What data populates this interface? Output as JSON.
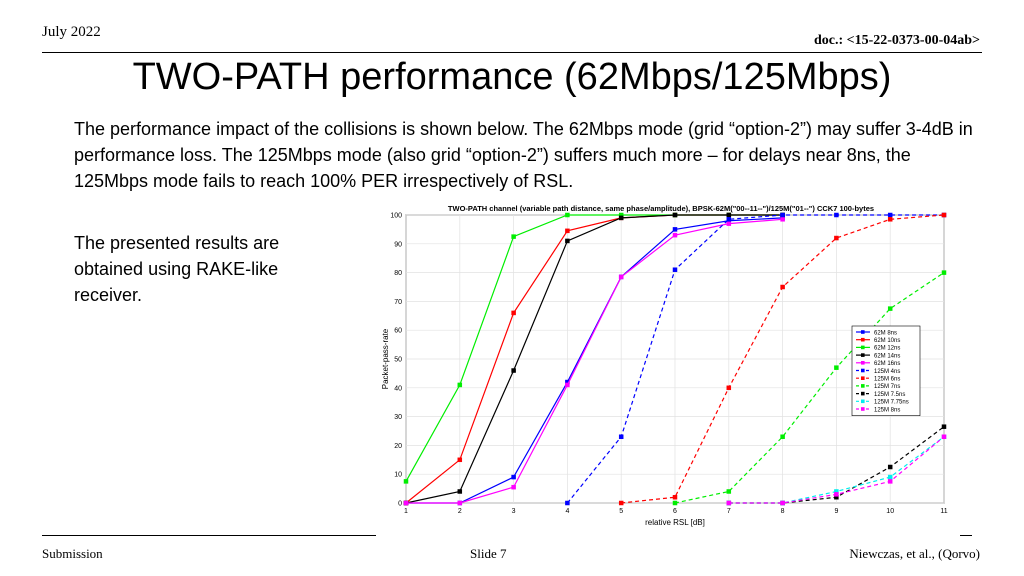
{
  "header": {
    "date": "July 2022",
    "doc": "doc.: <15-22-0373-00-04ab>"
  },
  "title": "TWO-PATH performance (62Mbps/125Mbps)",
  "paragraph": "The performance impact of the collisions is shown below. The 62Mbps mode (grid “option-2”) may suffer 3-4dB in performance loss. The 125Mbps mode (also grid “option-2”) suffers much more – for delays near 8ns, the 125Mbps mode fails to reach 100% PER irrespectively of RSL.",
  "side_note": "The presented results are obtained using RAKE-like receiver.",
  "footer": {
    "left": "Submission",
    "center": "Slide 7",
    "right": "Niewczas, et al., (Qorvo)"
  },
  "chart_data": {
    "type": "line",
    "title": "TWO-PATH channel (variable path distance, same phase/amplitude), BPSK-62M(\"00--11--\")/125M(\"01--\") CCK7 100-bytes",
    "xlabel": "relative RSL [dB]",
    "ylabel": "Packet-pass-rate",
    "xlim": [
      1,
      11
    ],
    "ylim": [
      0,
      100
    ],
    "x_ticks": [
      "1",
      "2",
      "3",
      "4",
      "5",
      "6",
      "7",
      "8",
      "9",
      "10",
      "11"
    ],
    "y_ticks": [
      "0",
      "10",
      "20",
      "30",
      "40",
      "50",
      "60",
      "70",
      "80",
      "90",
      "100"
    ],
    "grid": true,
    "legend_position": "center-right",
    "x": [
      1,
      2,
      3,
      4,
      5,
      6,
      7,
      8,
      9,
      10,
      11
    ],
    "series": [
      {
        "name": "62M 8ns",
        "color": "#0000ff",
        "dash": false,
        "values": [
          0,
          0,
          9,
          42,
          78.5,
          95,
          98,
          99,
          null,
          null,
          null
        ]
      },
      {
        "name": "62M 10ns",
        "color": "#ff0000",
        "dash": false,
        "values": [
          0,
          15,
          66,
          94.5,
          99,
          100,
          100,
          100,
          null,
          null,
          null
        ]
      },
      {
        "name": "62M 12ns",
        "color": "#00ee00",
        "dash": false,
        "values": [
          7.5,
          41,
          92.5,
          100,
          100,
          100,
          100,
          100,
          null,
          null,
          null
        ]
      },
      {
        "name": "62M 14ns",
        "color": "#000000",
        "dash": false,
        "values": [
          0,
          4,
          46,
          91,
          99,
          100,
          100,
          100,
          null,
          null,
          null
        ]
      },
      {
        "name": "62M 16ns",
        "color": "#ff00ff",
        "dash": false,
        "values": [
          0,
          0,
          5.5,
          41,
          78.5,
          93,
          97,
          98.5,
          null,
          null,
          null
        ]
      },
      {
        "name": "125M 4ns",
        "color": "#0000ff",
        "dash": true,
        "values": [
          null,
          null,
          null,
          0,
          23,
          81,
          98.5,
          100,
          100,
          100,
          100
        ]
      },
      {
        "name": "125M 6ns",
        "color": "#ff0000",
        "dash": true,
        "values": [
          null,
          null,
          null,
          null,
          0,
          2,
          40,
          75,
          92,
          98.5,
          100
        ]
      },
      {
        "name": "125M 7ns",
        "color": "#00ee00",
        "dash": true,
        "values": [
          null,
          null,
          null,
          null,
          null,
          0,
          4,
          23,
          47,
          67.5,
          80
        ]
      },
      {
        "name": "125M 7.5ns",
        "color": "#000000",
        "dash": true,
        "values": [
          null,
          null,
          null,
          null,
          null,
          null,
          0,
          0,
          2,
          12.5,
          26.5
        ]
      },
      {
        "name": "125M 7.75ns",
        "color": "#00eeee",
        "dash": true,
        "values": [
          null,
          null,
          null,
          null,
          null,
          null,
          0,
          0,
          4,
          9,
          23
        ]
      },
      {
        "name": "125M 8ns",
        "color": "#ff00ff",
        "dash": true,
        "values": [
          null,
          null,
          null,
          null,
          null,
          null,
          0,
          0,
          3,
          7.5,
          23
        ]
      }
    ]
  }
}
